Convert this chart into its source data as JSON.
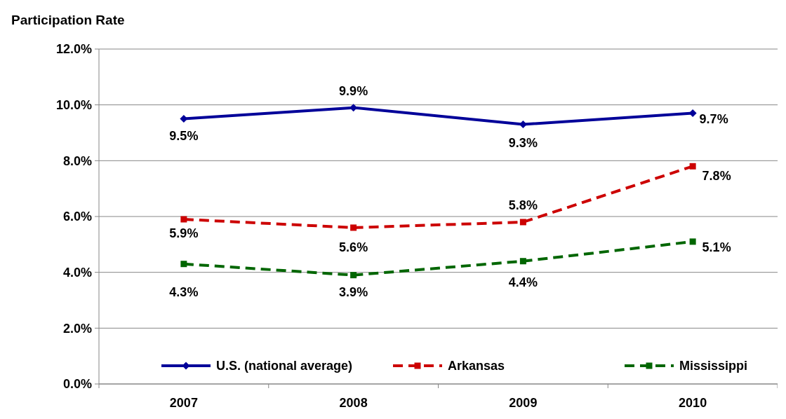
{
  "chart_data": {
    "type": "line",
    "title": "Participation Rate",
    "categories": [
      "2007",
      "2008",
      "2009",
      "2010"
    ],
    "series": [
      {
        "name": "U.S. (national average)",
        "color": "#000099",
        "values": [
          9.5,
          9.9,
          9.3,
          9.7
        ],
        "value_labels": [
          "9.5%",
          "9.9%",
          "9.3%",
          "9.7%"
        ],
        "marker": "diamond",
        "line_style": "solid"
      },
      {
        "name": "Arkansas",
        "color": "#cc0000",
        "values": [
          5.9,
          5.6,
          5.8,
          7.8
        ],
        "value_labels": [
          "5.9%",
          "5.6%",
          "5.8%",
          "7.8%"
        ],
        "marker": "square",
        "line_style": "dashed"
      },
      {
        "name": "Mississippi",
        "color": "#006600",
        "values": [
          4.3,
          3.9,
          4.4,
          5.1
        ],
        "value_labels": [
          "4.3%",
          "3.9%",
          "4.4%",
          "5.1%"
        ],
        "marker": "square",
        "line_style": "dashed"
      }
    ],
    "ylim": [
      0,
      12
    ],
    "yticks": [
      {
        "value": 0,
        "label": "0.0%"
      },
      {
        "value": 2,
        "label": "2.0%"
      },
      {
        "value": 4,
        "label": "4.0%"
      },
      {
        "value": 6,
        "label": "6.0%"
      },
      {
        "value": 8,
        "label": "8.0%"
      },
      {
        "value": 10,
        "label": "10.0%"
      },
      {
        "value": 12,
        "label": "12.0%"
      }
    ],
    "grid": "y",
    "legend": "bottom"
  }
}
